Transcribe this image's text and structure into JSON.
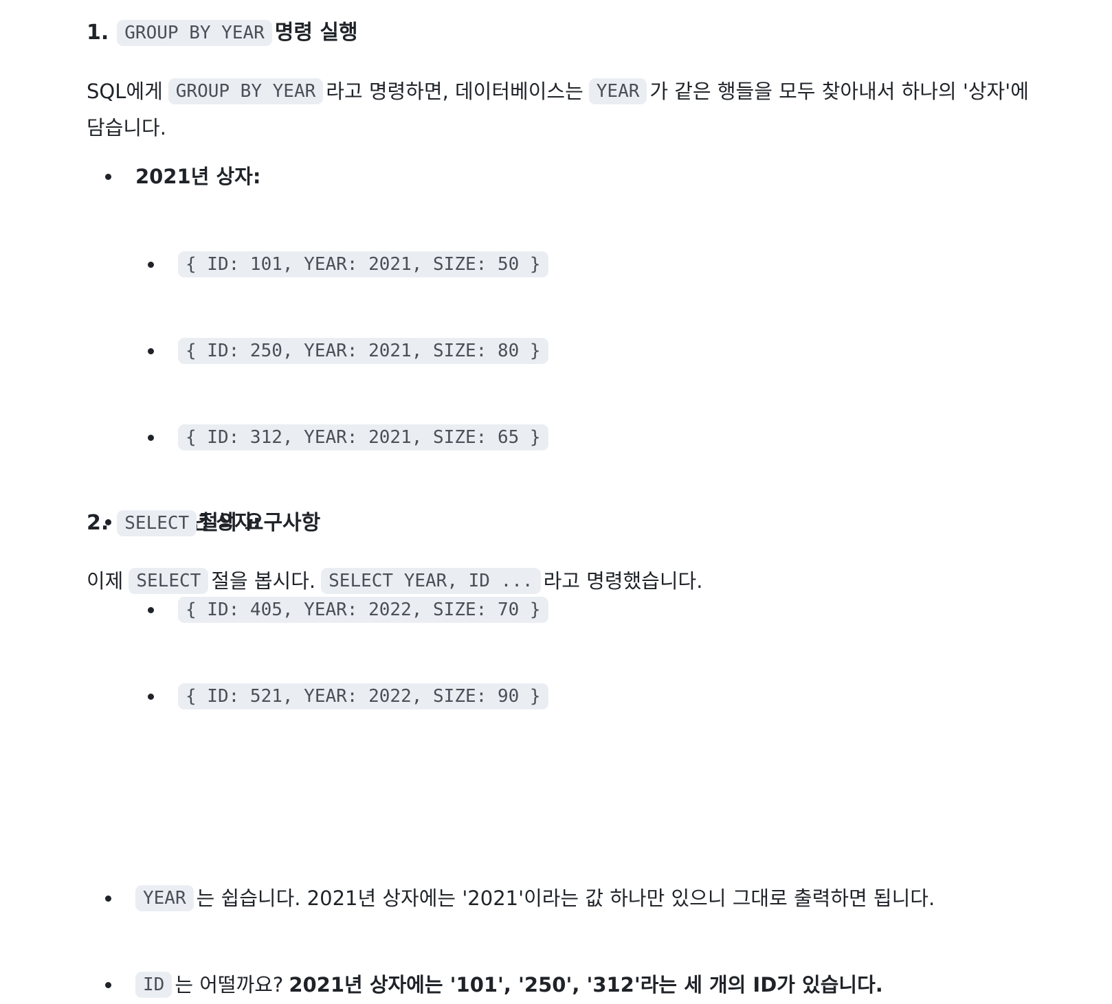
{
  "section1": {
    "number": "1.",
    "code": "GROUP BY YEAR",
    "title_suffix": "명령 실행",
    "para": {
      "t1": "SQL에게",
      "c1": "GROUP BY YEAR",
      "t2": "라고 명령하면, 데이터베이스는",
      "c2": "YEAR",
      "t3": "가 같은 행들을 모두 찾아내서 하나의 '상자'에",
      "t4": "담습니다."
    },
    "groups": [
      {
        "label": "2021년 상자:",
        "rows": [
          "{ ID: 101, YEAR: 2021, SIZE: 50 }",
          "{ ID: 250, YEAR: 2021, SIZE: 80 }",
          "{ ID: 312, YEAR: 2021, SIZE: 65 }"
        ]
      },
      {
        "label": "2022년 상자:",
        "rows": [
          "{ ID: 405, YEAR: 2022, SIZE: 70 }",
          "{ ID: 521, YEAR: 2022, SIZE: 90 }"
        ]
      }
    ]
  },
  "section2": {
    "number": "2.",
    "code": "SELECT",
    "title_suffix": "절의 요구사항",
    "para": {
      "t1": "이제",
      "c1": "SELECT",
      "t2": "절을 봅시다.",
      "c2": "SELECT YEAR, ID ...",
      "t3": "라고 명령했습니다."
    },
    "bullets": [
      {
        "code": "YEAR",
        "text": "는 쉽습니다. 2021년 상자에는 '2021'이라는 값 하나만 있으니 그대로 출력하면 됩니다."
      },
      {
        "code": "ID",
        "text": "는 어떨까요?",
        "bold": "2021년 상자에는 '101', '250', '312'라는 세 개의 ID가 있습니다."
      }
    ]
  }
}
